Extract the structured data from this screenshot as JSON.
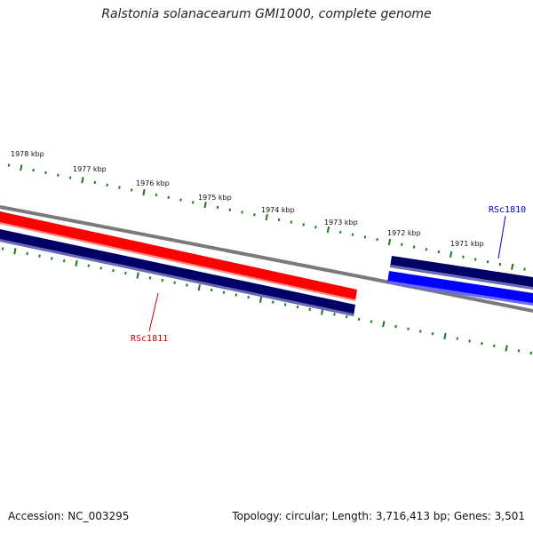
{
  "title": "Ralstonia solanacearum GMI1000, complete genome",
  "footer": {
    "accession": "Accession: NC_003295",
    "summary": "Topology: circular; Length: 3,716,413 bp; Genes: 3,501"
  },
  "scale_ticks": [
    {
      "label": "1978 kbp"
    },
    {
      "label": "1977 kbp"
    },
    {
      "label": "1976 kbp"
    },
    {
      "label": "1975 kbp"
    },
    {
      "label": "1974 kbp"
    },
    {
      "label": "1973 kbp"
    },
    {
      "label": "1972 kbp"
    },
    {
      "label": "1971 kbp"
    }
  ],
  "genes": [
    {
      "name": "RSc1810",
      "label_color": "#0000cc"
    },
    {
      "name": "RSc1811",
      "label_color": "#cc0000"
    }
  ],
  "colors": {
    "tick": "#1a7a1a",
    "backbone": "#7a7a7a",
    "gene_red": "#ff0000",
    "gene_navy": "#000066",
    "gene_blue": "#0000ff"
  }
}
